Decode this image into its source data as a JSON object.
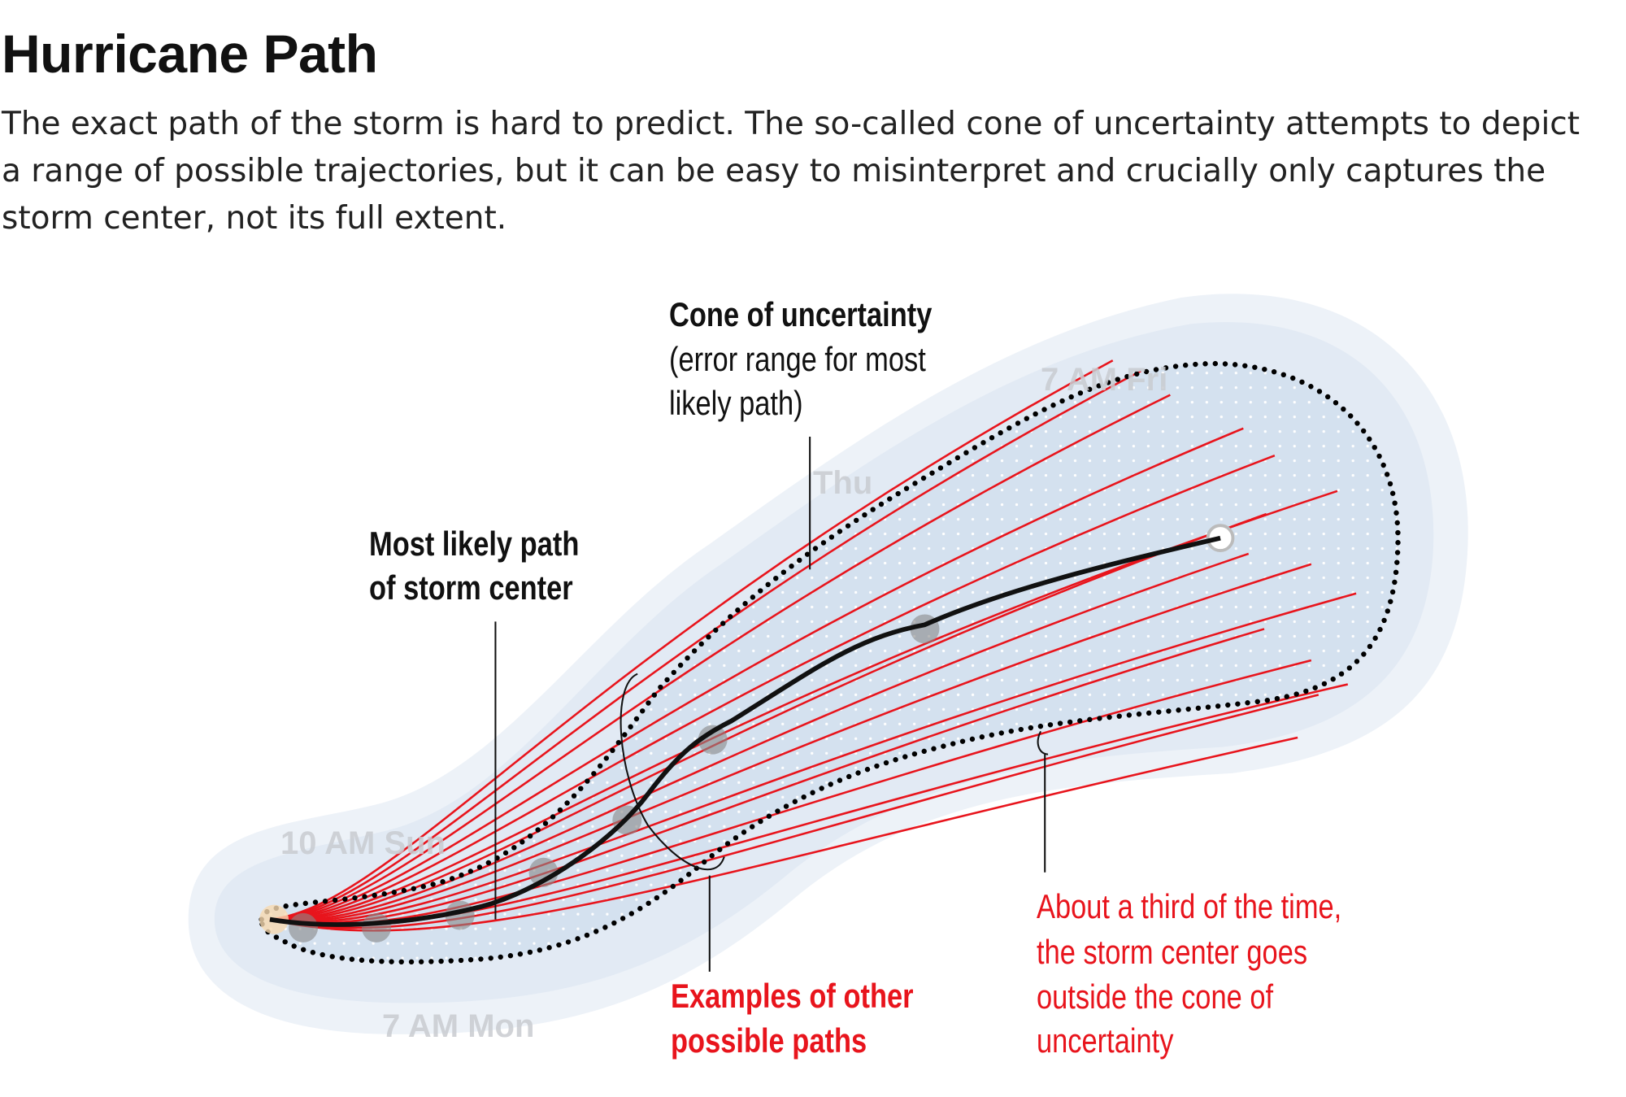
{
  "header": {
    "title": "Hurricane Path",
    "description": "The exact path of the storm is hard to predict. The so-called cone of uncertainty attempts to depict a range of possible trajectories, but it can be easy to misinterpret and crucially only captures the storm center, not its full extent."
  },
  "annotations": {
    "cone": {
      "title": "Cone of uncertainty",
      "line1": "(error range for most",
      "line2": "likely path)"
    },
    "likely": {
      "line1": "Most likely path",
      "line2": "of storm center"
    },
    "examples": {
      "line1": "Examples of other",
      "line2": "possible paths"
    },
    "outside": {
      "line1": "About a third of the time,",
      "line2": "the storm center goes",
      "line3": "outside the cone of",
      "line4": "uncertainty"
    }
  },
  "map_labels": {
    "sun": "10 AM Sun",
    "mon": "7 AM Mon",
    "fri": "7 AM Fri",
    "thu": "Thu"
  },
  "colors": {
    "red": "#e8141c",
    "cone_fill": "#d4e1ef",
    "halo": "#e6edf6",
    "path": "#111111"
  }
}
